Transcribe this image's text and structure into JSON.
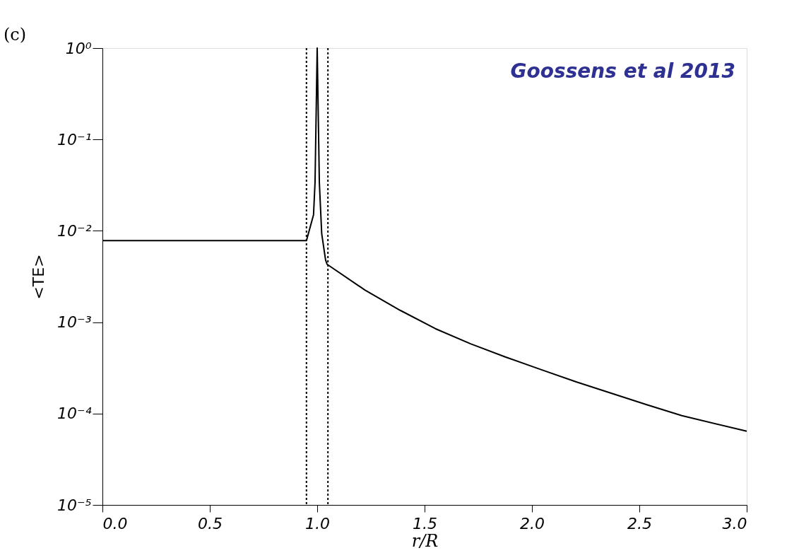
{
  "chart_data": {
    "type": "line",
    "xlabel": "r/R",
    "ylabel": "<TE>",
    "annotations": [
      "(c)",
      "Goossens et al 2013"
    ],
    "log": "y",
    "grid": false,
    "marker": "none",
    "line_style": "solid",
    "xlim": [
      0,
      3
    ],
    "xticks": [
      {
        "value": 0,
        "label": "0.0"
      },
      {
        "value": 0.5,
        "label": "0.5"
      },
      {
        "value": 1,
        "label": "1.0"
      },
      {
        "value": 1.5,
        "label": "1.5"
      },
      {
        "value": 2,
        "label": "2.0"
      },
      {
        "value": 2.5,
        "label": "2.5"
      },
      {
        "value": 3,
        "label": "3.0"
      }
    ],
    "ylim": [
      1e-05,
      1
    ],
    "yticks": [
      {
        "value": 1,
        "label": "10⁰"
      },
      {
        "value": 0.1,
        "label": "10⁻¹"
      },
      {
        "value": 0.01,
        "label": "10⁻²"
      },
      {
        "value": 0.001,
        "label": "10⁻³"
      },
      {
        "value": 0.0001,
        "label": "10⁻⁴"
      },
      {
        "value": 1e-05,
        "label": "10⁻⁵"
      }
    ],
    "ref_lines": [
      {
        "axis": "x",
        "value": 0.95,
        "line_style": "dotted",
        "color": "#000000"
      },
      {
        "axis": "x",
        "value": 1.05,
        "line_style": "dotted",
        "color": "#000000"
      }
    ],
    "series": [
      {
        "color": "#000000",
        "x": [
          0,
          0.5,
          0.95,
          0.983,
          0.99,
          1.0,
          1.01,
          1.021,
          1.039,
          1.046,
          1.222,
          1.386,
          1.55,
          1.714,
          1.878,
          2.042,
          2.206,
          2.534,
          2.698,
          3.0
        ],
        "values": [
          0.0078,
          0.0078,
          0.0078,
          0.015,
          0.034,
          1,
          0.034,
          0.0093,
          0.0048,
          0.0043,
          0.00225,
          0.00135,
          0.00085,
          0.00058,
          0.000415,
          0.000303,
          0.000222,
          0.000125,
          9.5e-05,
          6.4e-05
        ]
      }
    ]
  }
}
